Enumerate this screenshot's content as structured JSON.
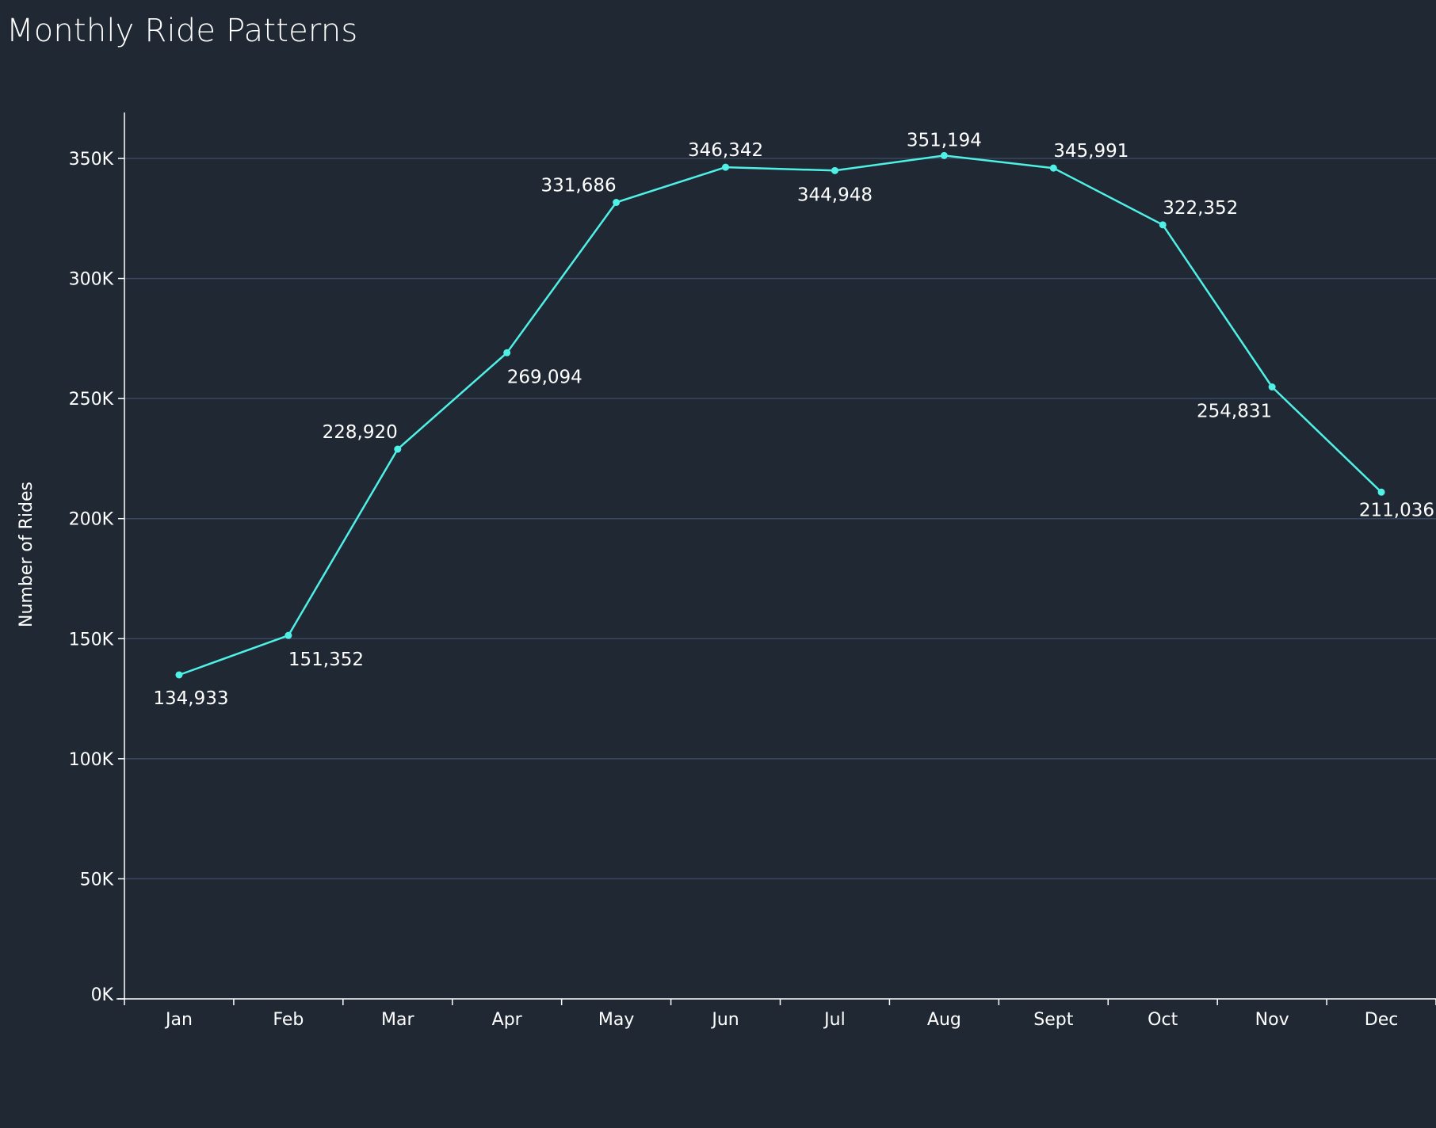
{
  "title": "Monthly Ride Patterns",
  "colors": {
    "background": "#202833",
    "line": "#4ff0e6",
    "gridline": "#3a4760",
    "axis": "#ffffff",
    "text": "#ffffff"
  },
  "chart_data": {
    "type": "line",
    "title": "Monthly Ride Patterns",
    "xlabel": "",
    "ylabel": "Number of Rides",
    "categories": [
      "Jan",
      "Feb",
      "Mar",
      "Apr",
      "May",
      "Jun",
      "Jul",
      "Aug",
      "Sept",
      "Oct",
      "Nov",
      "Dec"
    ],
    "values": [
      134933,
      151352,
      228920,
      269094,
      331686,
      346342,
      344948,
      351194,
      345991,
      322352,
      254831,
      211036
    ],
    "data_labels": [
      "134,933",
      "151,352",
      "228,920",
      "269,094",
      "331,686",
      "346,342",
      "344,948",
      "351,194",
      "345,991",
      "322,352",
      "254,831",
      "211,036"
    ],
    "label_position": [
      "below",
      "below",
      "above",
      "below",
      "above",
      "above",
      "below",
      "above",
      "above",
      "above",
      "below",
      "below"
    ],
    "ylim": [
      0,
      350000
    ],
    "yticks": [
      0,
      50000,
      100000,
      150000,
      200000,
      250000,
      300000,
      350000
    ],
    "ytick_labels": [
      "0K",
      "50K",
      "100K",
      "150K",
      "200K",
      "250K",
      "300K",
      "350K"
    ],
    "grid": true,
    "legend": "none"
  }
}
